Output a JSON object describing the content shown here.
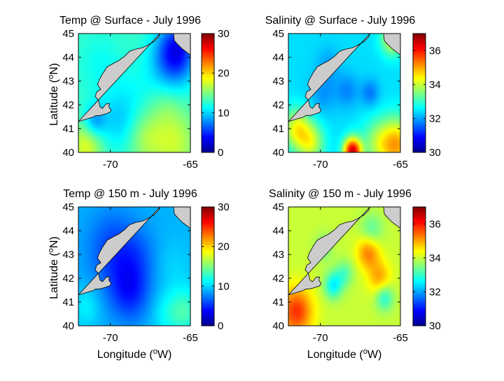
{
  "figure": {
    "xlabel": "Longitude (",
    "xlabel_sup": "o",
    "xlabel_tail": "W)",
    "ylabel": "Latitude (",
    "ylabel_sup": "o",
    "ylabel_tail": "N)"
  },
  "chart_data": [
    {
      "type": "heatmap",
      "title": "Temp @ Surface - July 1996",
      "variable": "temperature",
      "xlim": [
        -72,
        -65
      ],
      "ylim": [
        40,
        45
      ],
      "xticks": [
        "-70",
        "-65"
      ],
      "xtick_values": [
        -70,
        -65
      ],
      "yticks": [
        "40",
        "41",
        "42",
        "43",
        "44",
        "45"
      ],
      "colorbar": {
        "range": [
          0,
          30
        ],
        "ticks": [
          "0",
          "10",
          "20",
          "30"
        ],
        "tick_values": [
          0,
          10,
          20,
          30
        ]
      },
      "field": {
        "base": 13,
        "blobs": [
          [
            -69.5,
            41.3,
            -3.0,
            0.9
          ],
          [
            -71.0,
            41.3,
            -4.5,
            0.5
          ],
          [
            -70.6,
            43.7,
            -1.5,
            1.0
          ],
          [
            -66.2,
            43.8,
            -5.0,
            1.0
          ],
          [
            -65.8,
            44.4,
            -6.0,
            0.8
          ],
          [
            -66.5,
            42.0,
            1.5,
            0.7
          ],
          [
            -71.5,
            40.3,
            5.0,
            0.7
          ],
          [
            -66.0,
            40.4,
            4.0,
            1.0
          ],
          [
            -67.8,
            40.6,
            3.0,
            0.8
          ],
          [
            -68.5,
            42.5,
            -1.0,
            0.9
          ]
        ]
      }
    },
    {
      "type": "heatmap",
      "title": "Salinity @ Surface - July 1996",
      "variable": "salinity",
      "xlim": [
        -72,
        -65
      ],
      "ylim": [
        40,
        45
      ],
      "xticks": [
        "-70",
        "-65"
      ],
      "xtick_values": [
        -70,
        -65
      ],
      "yticks": [
        "40",
        "41",
        "42",
        "43",
        "44",
        "45"
      ],
      "colorbar": {
        "range": [
          30,
          37
        ],
        "ticks": [
          "30",
          "32",
          "34",
          "36"
        ],
        "tick_values": [
          30,
          32,
          34,
          36
        ]
      },
      "field": {
        "base": 32.4,
        "blobs": [
          [
            -71.5,
            41.0,
            1.8,
            0.6
          ],
          [
            -70.6,
            40.4,
            1.6,
            0.6
          ],
          [
            -68.0,
            40.05,
            4.0,
            0.4
          ],
          [
            -65.2,
            40.3,
            2.5,
            0.8
          ],
          [
            -65.5,
            44.8,
            1.8,
            0.5
          ],
          [
            -66.5,
            40.4,
            1.0,
            0.7
          ],
          [
            -68.3,
            42.6,
            -0.6,
            0.5
          ],
          [
            -66.9,
            42.5,
            -0.7,
            0.4
          ],
          [
            -69.8,
            42.5,
            -0.5,
            0.6
          ],
          [
            -69.5,
            43.7,
            -0.4,
            0.5
          ]
        ]
      }
    },
    {
      "type": "heatmap",
      "title": "Temp @ 150 m - July 1996",
      "variable": "temperature",
      "xlim": [
        -72,
        -65
      ],
      "ylim": [
        40,
        45
      ],
      "xticks": [
        "-70",
        "-65"
      ],
      "xtick_values": [
        -70,
        -65
      ],
      "yticks": [
        "40",
        "41",
        "42",
        "43",
        "44",
        "45"
      ],
      "colorbar": {
        "range": [
          0,
          30
        ],
        "ticks": [
          "0",
          "10",
          "20",
          "30"
        ],
        "tick_values": [
          0,
          10,
          20,
          30
        ]
      },
      "field": {
        "base": 9.0,
        "blobs": [
          [
            -68.8,
            41.5,
            -4.5,
            0.9
          ],
          [
            -69.8,
            43.2,
            -3.5,
            1.1
          ],
          [
            -68.2,
            43.0,
            -1.5,
            0.8
          ],
          [
            -65.3,
            40.6,
            4.0,
            0.7
          ],
          [
            -66.5,
            40.5,
            2.0,
            0.7
          ],
          [
            -66.0,
            42.5,
            1.0,
            0.8
          ],
          [
            -71.5,
            40.8,
            2.0,
            0.6
          ]
        ]
      }
    },
    {
      "type": "heatmap",
      "title": "Salinity @ 150 m - July 1996",
      "variable": "salinity",
      "xlim": [
        -72,
        -65
      ],
      "ylim": [
        40,
        45
      ],
      "xticks": [
        "-70",
        "-65"
      ],
      "xtick_values": [
        -70,
        -65
      ],
      "yticks": [
        "40",
        "41",
        "42",
        "43",
        "44",
        "45"
      ],
      "colorbar": {
        "range": [
          30,
          37
        ],
        "ticks": [
          "30",
          "32",
          "34",
          "36"
        ],
        "tick_values": [
          30,
          32,
          34,
          36
        ]
      },
      "field": {
        "base": 34.0,
        "blobs": [
          [
            -71.5,
            40.6,
            1.8,
            0.7
          ],
          [
            -67.0,
            43.1,
            1.3,
            0.5
          ],
          [
            -66.3,
            42.0,
            1.0,
            0.5
          ],
          [
            -69.2,
            41.7,
            -1.4,
            0.4
          ],
          [
            -66.0,
            41.2,
            -1.2,
            0.4
          ],
          [
            -68.5,
            42.2,
            -0.8,
            0.4
          ],
          [
            -69.8,
            43.3,
            -0.6,
            0.4
          ],
          [
            -66.8,
            44.0,
            -0.8,
            0.5
          ]
        ]
      }
    }
  ],
  "colors": {
    "land": "#cccccc",
    "ocean_scale": [
      "#00008f",
      "#0000ff",
      "#00ffff",
      "#ffff00",
      "#ff0000",
      "#800000"
    ]
  }
}
